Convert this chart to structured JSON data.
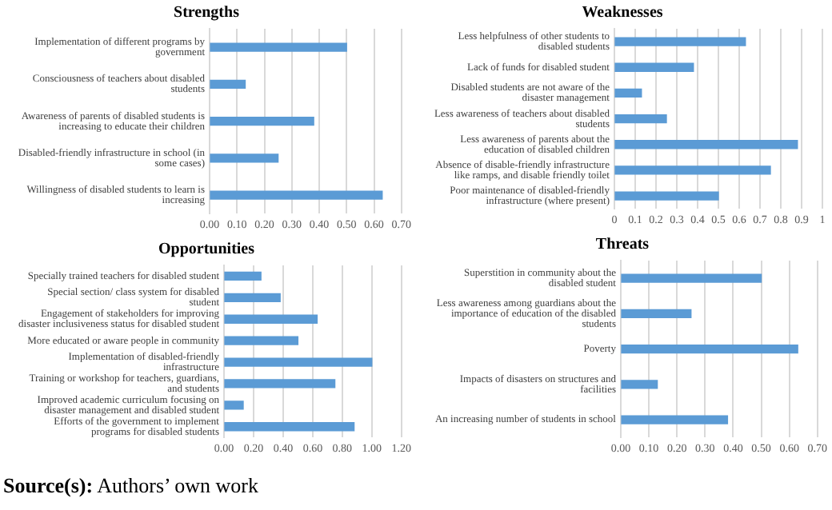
{
  "chart_data": [
    {
      "type": "bar",
      "orientation": "horizontal",
      "title": "Strengths",
      "categories": [
        "Implementation of different programs by government",
        "Consciousness of teachers about disabled students",
        "Awareness of parents of disabled students is increasing to educate their children",
        "Disabled-friendly infrastructure in school (in some cases)",
        "Willingness of disabled students to learn is increasing"
      ],
      "values": [
        0.5,
        0.13,
        0.38,
        0.25,
        0.63
      ],
      "color": "#5b9bd5",
      "xlim": [
        0,
        0.7
      ],
      "xticks": [
        {
          "value": 0,
          "label": "0.00"
        },
        {
          "value": 0.1,
          "label": "0.10"
        },
        {
          "value": 0.2,
          "label": "0.20"
        },
        {
          "value": 0.3,
          "label": "0.30"
        },
        {
          "value": 0.4,
          "label": "0.40"
        },
        {
          "value": 0.5,
          "label": "0.50"
        },
        {
          "value": 0.6,
          "label": "0.60"
        },
        {
          "value": 0.7,
          "label": "0.70"
        }
      ],
      "grid": "x"
    },
    {
      "type": "bar",
      "orientation": "horizontal",
      "title": "Weaknesses",
      "categories": [
        "Less helpfulness of other students to disabled students",
        "Lack of funds for disabled student",
        "Disabled students are not aware of the disaster management",
        "Less awareness of teachers about disabled students",
        "Less awareness of parents about the education of disabled children",
        "Absence of disable-friendly infrastructure like ramps, and disable friendly toilet",
        "Poor maintenance of disabled-friendly infrastructure (where present)"
      ],
      "values": [
        0.63,
        0.38,
        0.13,
        0.25,
        0.88,
        0.75,
        0.5
      ],
      "color": "#5b9bd5",
      "xlim": [
        0,
        1
      ],
      "xticks": [
        0,
        0.1,
        0.2,
        0.3,
        0.4,
        0.5,
        0.6,
        0.7,
        0.8,
        0.9,
        1
      ],
      "grid": "x"
    },
    {
      "type": "bar",
      "orientation": "horizontal",
      "title": "Opportunities",
      "categories": [
        "Specially trained teachers for disabled student",
        "Special section/ class system for disabled student",
        "Engagement of stakeholders for improving disaster inclusiveness status for disabled student",
        "More educated or aware people in community",
        "Implementation of disabled-friendly infrastructure",
        "Training or workshop for teachers, guardians, and students",
        "Improved academic curriculum focusing on disaster management and disabled student",
        "Efforts of the government to implement programs for disabled students"
      ],
      "values": [
        0.25,
        0.38,
        0.63,
        0.5,
        1.0,
        0.75,
        0.13,
        0.88
      ],
      "color": "#5b9bd5",
      "xlim": [
        0,
        1.2
      ],
      "xticks": [
        {
          "value": 0,
          "label": "0.00"
        },
        {
          "value": 0.2,
          "label": "0.20"
        },
        {
          "value": 0.4,
          "label": "0.40"
        },
        {
          "value": 0.6,
          "label": "0.60"
        },
        {
          "value": 0.8,
          "label": "0.80"
        },
        {
          "value": 1,
          "label": "1.00"
        },
        {
          "value": 1.2,
          "label": "1.20"
        }
      ],
      "grid": "x"
    },
    {
      "type": "bar",
      "orientation": "horizontal",
      "title": "Threats",
      "categories": [
        "Superstition in community about the disabled student",
        "Less awareness among guardians about the importance of education of the disabled students",
        "Poverty",
        "Impacts of disasters on structures and facilities",
        "An increasing number of students in school"
      ],
      "values": [
        0.5,
        0.25,
        0.63,
        0.13,
        0.38
      ],
      "color": "#5b9bd5",
      "xlim": [
        0,
        0.7
      ],
      "xticks": [
        {
          "value": 0,
          "label": "0.00"
        },
        {
          "value": 0.1,
          "label": "0.10"
        },
        {
          "value": 0.2,
          "label": "0.20"
        },
        {
          "value": 0.3,
          "label": "0.30"
        },
        {
          "value": 0.4,
          "label": "0.40"
        },
        {
          "value": 0.5,
          "label": "0.50"
        },
        {
          "value": 0.6,
          "label": "0.60"
        },
        {
          "value": 0.7,
          "label": "0.70"
        }
      ],
      "grid": "x",
      "annotations": [
        "Source(s): Authors’ own work"
      ]
    }
  ]
}
